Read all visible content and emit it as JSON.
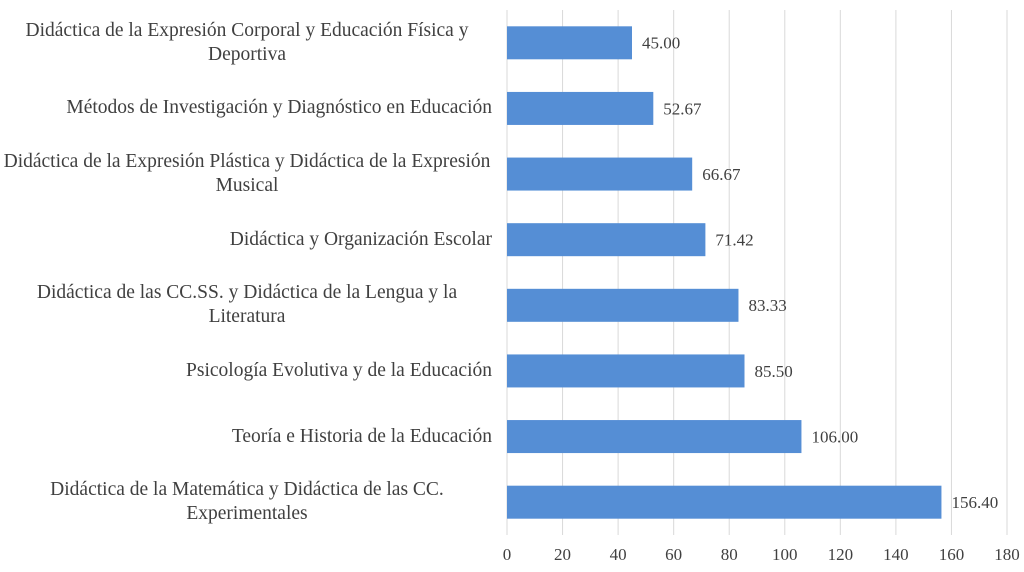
{
  "chart_data": {
    "type": "bar",
    "orientation": "horizontal",
    "categories": [
      "Didáctica de la Expresión Corporal y Educación Física y Deportiva",
      "Métodos de Investigación y Diagnóstico en Educación",
      "Didáctica de la Expresión Plástica y Didáctica de la Expresión Musical",
      "Didáctica y Organización Escolar",
      "Didáctica de las CC.SS. y Didáctica de la Lengua y la Literatura",
      "Psicología Evolutiva y de la Educación",
      "Teoría e Historia de la Educación",
      "Didáctica de la Matemática y Didáctica de las CC. Experimentales"
    ],
    "values": [
      45,
      52.67,
      66.67,
      71.42,
      83.33,
      85.5,
      106,
      156.4
    ],
    "value_labels": [
      "45.00",
      "52.67",
      "66.67",
      "71.42",
      "83.33",
      "85.50",
      "106.00",
      "156.40"
    ],
    "color": "#558ed5",
    "xlim": [
      0,
      180
    ],
    "xticks": [
      0,
      20,
      40,
      60,
      80,
      100,
      120,
      140,
      160,
      180
    ],
    "grid": true
  }
}
